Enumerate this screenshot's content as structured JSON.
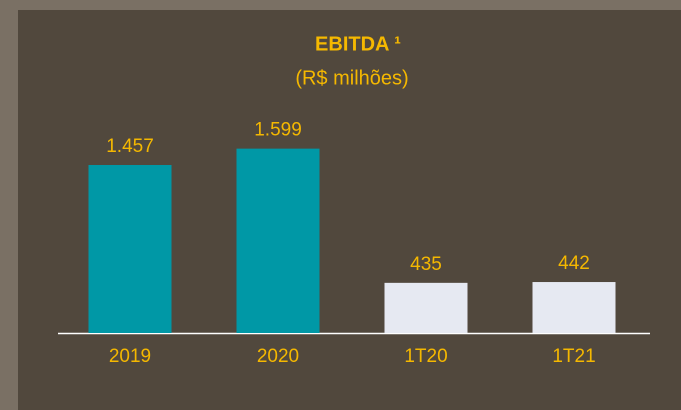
{
  "chart_data": {
    "type": "bar",
    "title": "EBITDA ¹",
    "subtitle": "(R$ milhões)",
    "categories": [
      "2019",
      "2020",
      "1T20",
      "1T21"
    ],
    "values": [
      1457,
      1599,
      435,
      442
    ],
    "value_labels": [
      "1.457",
      "1.599",
      "435",
      "442"
    ],
    "colors": [
      "#0098a6",
      "#0098a6",
      "#e6e9f2",
      "#e6e9f2"
    ]
  }
}
